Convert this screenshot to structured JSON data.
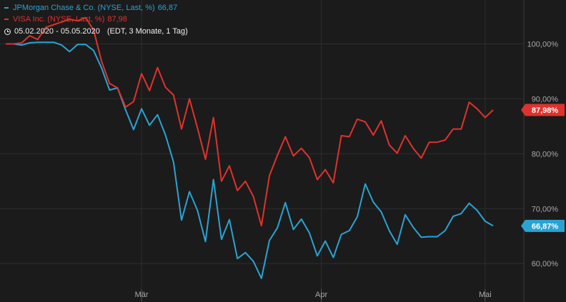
{
  "legend": {
    "jpm_label": "JPMorgan Chase & Co. (NYSE, Last, %)",
    "jpm_value": "66,87",
    "visa_label": "VISA Inc. (NYSE, Last, %)",
    "visa_value": "87,98",
    "date_range": "05.02.2020 - 05.05.2020",
    "range_info": "(EDT, 3 Monate, 1 Tag)",
    "clock_icon": "clock-icon"
  },
  "colors": {
    "background": "#1b1b1b",
    "grid": "#2e2e2e",
    "jpm": "#2aa3d3",
    "visa": "#e0322c",
    "axis_text": "#a8a8a8"
  },
  "chart_data": {
    "type": "line",
    "x": [
      1,
      2,
      3,
      4,
      5,
      6,
      7,
      8,
      9,
      10,
      11,
      12,
      13,
      14,
      15,
      16,
      17,
      18,
      19,
      20,
      21,
      22,
      23,
      24,
      25,
      26,
      27,
      28,
      29,
      30,
      31,
      32,
      33,
      34,
      35,
      36,
      37,
      38,
      39,
      40,
      41,
      42,
      43,
      44,
      45,
      46,
      47,
      48,
      49,
      50,
      51,
      52,
      53,
      54,
      55,
      56,
      57,
      58,
      59,
      60,
      61,
      62
    ],
    "y_axis": {
      "ticks": [
        60,
        70,
        80,
        90,
        100
      ],
      "tick_labels": [
        "60,00%",
        "70,00%",
        "80,00%",
        "90,00%",
        "100,00%"
      ],
      "ylim": [
        53,
        108
      ]
    },
    "x_tick_labels": [
      {
        "label": "Mär",
        "x": 18
      },
      {
        "label": "Apr",
        "x": 40.5
      },
      {
        "label": "Mai",
        "x": 61
      }
    ],
    "series": [
      {
        "name": "JPMorgan Chase & Co. (NYSE, Last, %)",
        "last_label": "66,87%",
        "values": [
          100.0,
          100.0,
          99.8,
          100.2,
          100.3,
          100.3,
          100.3,
          99.8,
          98.6,
          99.9,
          99.9,
          98.8,
          95.6,
          91.6,
          92.0,
          88.0,
          84.4,
          88.2,
          85.2,
          87.1,
          83.4,
          78.5,
          67.9,
          73.1,
          69.7,
          64.0,
          75.3,
          64.4,
          68.0,
          60.9,
          62.0,
          60.4,
          57.3,
          64.2,
          66.5,
          71.1,
          66.2,
          68.1,
          65.6,
          61.4,
          64.1,
          61.1,
          65.3,
          66.0,
          68.5,
          74.5,
          71.2,
          69.4,
          66.0,
          63.5,
          68.9,
          66.6,
          64.8,
          64.9,
          64.9,
          66.0,
          68.6,
          69.1,
          71.0,
          69.7,
          67.7,
          66.87
        ]
      },
      {
        "name": "VISA Inc. (NYSE, Last, %)",
        "last_label": "87,98%",
        "values": [
          100.0,
          100.0,
          100.2,
          101.5,
          100.8,
          103.0,
          103.5,
          104.0,
          104.5,
          104.2,
          104.8,
          102.5,
          96.8,
          92.8,
          92.0,
          88.5,
          89.5,
          94.6,
          91.5,
          95.7,
          92.1,
          90.7,
          84.5,
          90.0,
          84.7,
          79.0,
          86.6,
          75.0,
          77.8,
          73.3,
          75.0,
          72.2,
          66.9,
          76.0,
          79.7,
          83.1,
          79.6,
          81.0,
          79.3,
          75.3,
          77.1,
          74.7,
          83.3,
          83.1,
          86.3,
          85.8,
          83.4,
          86.0,
          81.6,
          80.1,
          83.3,
          81.0,
          79.2,
          82.1,
          82.1,
          82.5,
          84.5,
          84.5,
          89.4,
          88.2,
          86.6,
          87.98
        ]
      }
    ]
  }
}
